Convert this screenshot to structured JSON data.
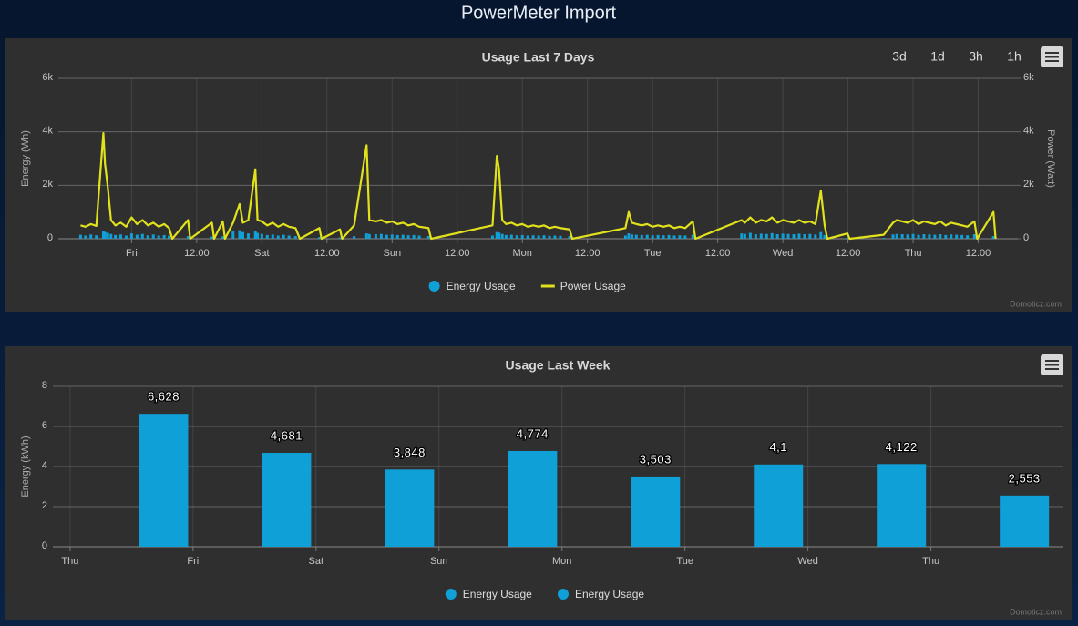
{
  "page_title": "PowerMeter Import",
  "chart_data": [
    {
      "type": "line",
      "title": "Usage Last 7 Days",
      "zoom_buttons": [
        "3d",
        "1d",
        "3h",
        "1h"
      ],
      "credits": "Domoticz.com",
      "ylabel": "Energy (Wh)",
      "y2label": "Power (Watt)",
      "xlim": [
        10.5,
        187.3
      ],
      "xticks": [
        {
          "value": 24,
          "label": "Fri"
        },
        {
          "value": 36,
          "label": "12:00"
        },
        {
          "value": 48,
          "label": "Sat"
        },
        {
          "value": 60,
          "label": "12:00"
        },
        {
          "value": 72,
          "label": "Sun"
        },
        {
          "value": 84,
          "label": "12:00"
        },
        {
          "value": 96,
          "label": "Mon"
        },
        {
          "value": 108,
          "label": "12:00"
        },
        {
          "value": 120,
          "label": "Tue"
        },
        {
          "value": 132,
          "label": "12:00"
        },
        {
          "value": 144,
          "label": "Wed"
        },
        {
          "value": 156,
          "label": "12:00"
        },
        {
          "value": 168,
          "label": "Thu"
        },
        {
          "value": 180,
          "label": "12:00"
        }
      ],
      "ylim": [
        0,
        6000
      ],
      "yticks": [
        0,
        {
          "value": 2000,
          "label": "2k"
        },
        {
          "value": 4000,
          "label": "4k"
        },
        {
          "value": 6000,
          "label": "6k"
        }
      ],
      "y2lim": [
        0,
        6000
      ],
      "y2ticks": [
        0,
        {
          "value": 2000,
          "label": "2k"
        },
        {
          "value": 4000,
          "label": "4k"
        },
        {
          "value": 6000,
          "label": "6k"
        }
      ],
      "grid": true,
      "x": [
        14.6,
        15.5,
        16.5,
        17.5,
        18.8,
        19.1,
        19.6,
        20.2,
        21,
        22,
        23,
        24,
        25,
        26,
        27,
        28,
        29,
        30,
        30.9,
        31.5,
        34.4,
        34.8,
        38.8,
        39.2,
        40.8,
        41.2,
        42.7,
        43.9,
        44.5,
        45.5,
        46.8,
        47.2,
        48,
        49,
        50,
        51,
        52,
        53,
        54.2,
        55,
        58.6,
        59,
        62.4,
        62.8,
        65,
        67.3,
        67.8,
        69,
        70,
        71,
        72,
        73,
        74,
        75,
        76,
        77,
        78.7,
        79.2,
        90.5,
        91.3,
        91.7,
        92.3,
        93,
        94,
        95,
        96,
        97,
        98,
        99,
        100,
        101,
        102,
        103,
        104.7,
        105.2,
        115,
        115.6,
        116.2,
        117,
        118,
        119,
        120,
        121,
        122,
        123,
        124,
        125,
        126,
        127.4,
        127.9,
        136.4,
        137,
        138,
        139,
        140,
        141,
        142,
        143,
        144,
        145,
        146,
        147,
        148,
        149,
        150,
        151,
        151.7,
        152.2,
        155.9,
        156.3,
        162.6,
        164.3,
        165,
        166,
        167,
        168,
        169,
        170,
        171,
        172,
        173,
        174,
        175,
        176,
        177,
        178,
        179.3,
        179.8,
        182.8,
        183.2
      ],
      "series": [
        {
          "name": "Energy Usage",
          "type": "bar",
          "color": "#10a0d8",
          "values": [
            150,
            120,
            160,
            130,
            300,
            250,
            220,
            180,
            140,
            160,
            120,
            200,
            150,
            180,
            130,
            160,
            120,
            140,
            110,
            0,
            100,
            0,
            80,
            0,
            90,
            0,
            300,
            320,
            250,
            200,
            280,
            220,
            180,
            140,
            160,
            120,
            150,
            120,
            100,
            0,
            60,
            0,
            50,
            0,
            100,
            200,
            180,
            170,
            180,
            150,
            160,
            140,
            150,
            130,
            140,
            120,
            100,
            0,
            120,
            250,
            230,
            180,
            140,
            150,
            130,
            140,
            120,
            130,
            120,
            130,
            110,
            120,
            110,
            100,
            0,
            120,
            200,
            160,
            150,
            140,
            150,
            130,
            140,
            130,
            140,
            120,
            130,
            120,
            150,
            0,
            200,
            180,
            220,
            170,
            190,
            180,
            210,
            170,
            190,
            180,
            170,
            190,
            170,
            180,
            160,
            250,
            140,
            0,
            40,
            0,
            30,
            160,
            180,
            170,
            160,
            180,
            150,
            170,
            160,
            150,
            170,
            140,
            160,
            150,
            140,
            130,
            170,
            0,
            100,
            0
          ]
        },
        {
          "name": "Power Usage",
          "type": "line",
          "axis": "y2",
          "color": "#e2e21c",
          "values": [
            500,
            450,
            550,
            480,
            3950,
            2800,
            1950,
            700,
            500,
            600,
            450,
            800,
            550,
            700,
            500,
            600,
            450,
            550,
            400,
            0,
            700,
            0,
            600,
            0,
            650,
            0,
            600,
            1300,
            600,
            700,
            2600,
            700,
            650,
            500,
            600,
            450,
            550,
            450,
            400,
            0,
            400,
            0,
            350,
            0,
            500,
            3500,
            700,
            650,
            700,
            600,
            650,
            550,
            600,
            500,
            550,
            450,
            400,
            0,
            500,
            3100,
            2600,
            700,
            550,
            600,
            500,
            550,
            450,
            500,
            450,
            500,
            400,
            450,
            400,
            350,
            0,
            400,
            1000,
            600,
            550,
            500,
            550,
            450,
            500,
            450,
            500,
            400,
            450,
            400,
            650,
            0,
            700,
            600,
            800,
            600,
            700,
            650,
            800,
            600,
            700,
            650,
            600,
            700,
            600,
            650,
            550,
            1800,
            500,
            0,
            200,
            0,
            150,
            600,
            700,
            650,
            600,
            700,
            550,
            650,
            600,
            550,
            650,
            500,
            600,
            550,
            500,
            450,
            650,
            0,
            1000,
            0
          ]
        }
      ]
    },
    {
      "type": "bar",
      "title": "Usage Last Week",
      "credits": "Domoticz.com",
      "ylabel": "Energy (kWh)",
      "xlim": [
        -0.14,
        8.07
      ],
      "xticks": [
        {
          "value": 0,
          "label": "Thu"
        },
        {
          "value": 1,
          "label": "Fri"
        },
        {
          "value": 2,
          "label": "Sat"
        },
        {
          "value": 3,
          "label": "Sun"
        },
        {
          "value": 4,
          "label": "Mon"
        },
        {
          "value": 5,
          "label": "Tue"
        },
        {
          "value": 6,
          "label": "Wed"
        },
        {
          "value": 7,
          "label": "Thu"
        }
      ],
      "ylim": [
        0,
        8
      ],
      "yticks": [
        0,
        2,
        4,
        6,
        8
      ],
      "grid": true,
      "x": [
        0.76,
        1.76,
        2.76,
        3.76,
        4.76,
        5.76,
        6.76,
        7.76
      ],
      "series": [
        {
          "name": "Energy Usage",
          "color": "#10a0d8",
          "values": [
            6.628,
            4.681,
            3.848,
            4.774,
            3.503,
            4.1,
            4.122,
            2.553
          ],
          "value_labels": [
            "6,628",
            "4,681",
            "3,848",
            "4,774",
            "3,503",
            "4,1",
            "4,122",
            "2,553"
          ]
        },
        {
          "name": "Energy Usage",
          "color": "#10a0d8"
        }
      ]
    }
  ]
}
